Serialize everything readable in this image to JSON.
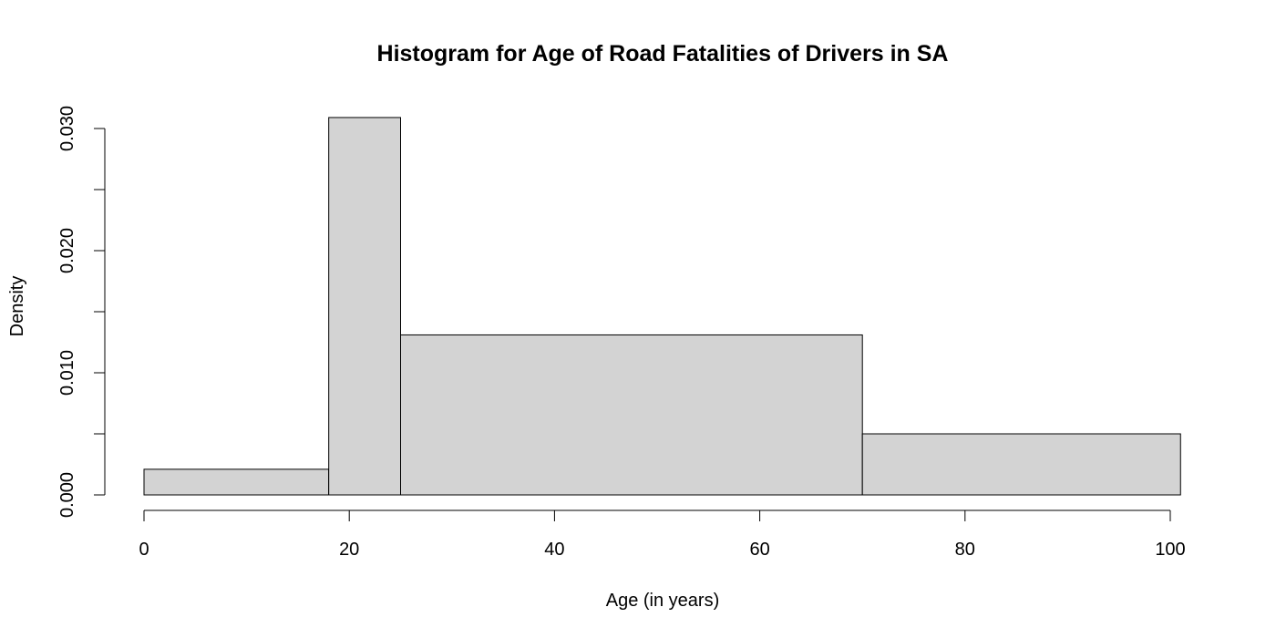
{
  "chart_data": {
    "type": "bar",
    "title": "Histogram for Age of Road Fatalities of Drivers in SA",
    "xlabel": "Age (in years)",
    "ylabel": "Density",
    "bins": [
      {
        "from": 0,
        "to": 18,
        "density": 0.0021
      },
      {
        "from": 18,
        "to": 25,
        "density": 0.0309
      },
      {
        "from": 25,
        "to": 70,
        "density": 0.0131
      },
      {
        "from": 70,
        "to": 101,
        "density": 0.005
      }
    ],
    "xlim": [
      0,
      100
    ],
    "ylim": [
      0,
      0.03
    ],
    "x_ticks": [
      0,
      20,
      40,
      60,
      80,
      100
    ],
    "x_tick_labels": [
      "0",
      "20",
      "40",
      "60",
      "80",
      "100"
    ],
    "y_ticks": [
      0,
      0.005,
      0.01,
      0.015,
      0.02,
      0.025,
      0.03
    ],
    "y_tick_labels": [
      "0.000",
      "",
      "0.010",
      "",
      "0.020",
      "",
      "0.030"
    ],
    "bar_fill": "#d3d3d3",
    "bar_stroke": "#000000",
    "grid": false,
    "legend": "none"
  }
}
